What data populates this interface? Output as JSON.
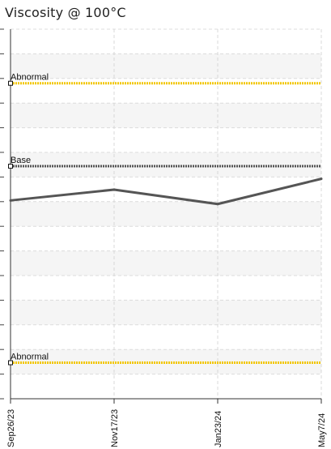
{
  "title": "Viscosity @ 100°C",
  "chart_data": {
    "type": "line",
    "title": "Viscosity @ 100°C",
    "x": [
      "Sep26/23",
      "Nov17/23",
      "Jan23/24",
      "May7/24"
    ],
    "series": [
      {
        "values": [
          11.0,
          11.6,
          10.8,
          12.2
        ],
        "color": "#555555"
      }
    ],
    "reference_lines": [
      {
        "label": "Abnormal",
        "value": 17.5,
        "color": "#f2c600"
      },
      {
        "label": "Base",
        "value": 12.9,
        "color": "#555555"
      },
      {
        "label": "Abnormal",
        "value": 2.0,
        "color": "#f2c600"
      }
    ],
    "ylim": [
      0,
      20.5
    ],
    "grid": true,
    "legend": "none"
  }
}
